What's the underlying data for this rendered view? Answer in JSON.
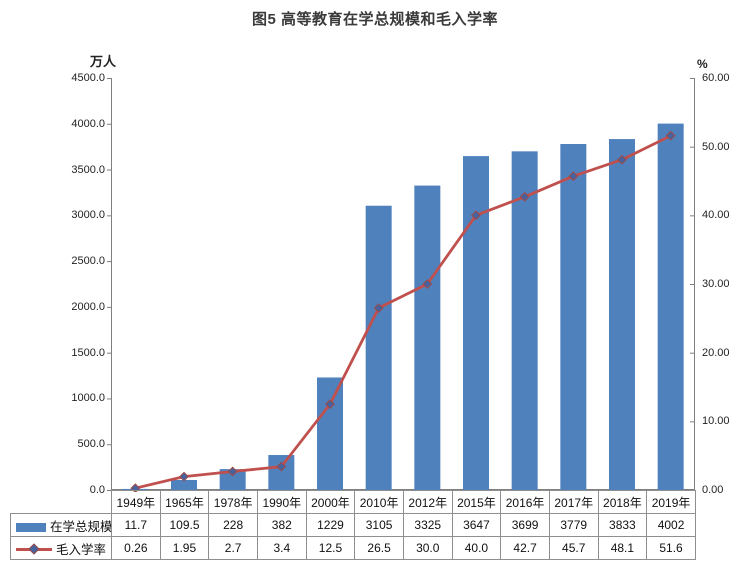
{
  "title": "图5 高等教育在学总规模和毛入学率",
  "chart_data": {
    "type": "bar+line",
    "categories": [
      "1949年",
      "1965年",
      "1978年",
      "1990年",
      "2000年",
      "2010年",
      "2012年",
      "2015年",
      "2016年",
      "2017年",
      "2018年",
      "2019年"
    ],
    "series": [
      {
        "name": "在学总规模",
        "type": "bar",
        "axis": "left",
        "color": "#4f81bd",
        "values": [
          11.7,
          109.5,
          228,
          382,
          1229,
          3105,
          3325,
          3647,
          3699,
          3779,
          3833,
          4002
        ],
        "display_values": [
          "11.7",
          "109.5",
          "228",
          "382",
          "1229",
          "3105",
          "3325",
          "3647",
          "3699",
          "3779",
          "3833",
          "4002"
        ]
      },
      {
        "name": "毛入学率",
        "type": "line",
        "axis": "right",
        "color": "#c0504d",
        "marker": "diamond",
        "marker_fill": "#46639f",
        "marker_border": "#9e4a47",
        "values": [
          0.26,
          1.95,
          2.7,
          3.4,
          12.5,
          26.5,
          30.0,
          40.0,
          42.7,
          45.7,
          48.1,
          51.6
        ],
        "display_values": [
          "0.26",
          "1.95",
          "2.7",
          "3.4",
          "12.5",
          "26.5",
          "30.0",
          "40.0",
          "42.7",
          "45.7",
          "48.1",
          "51.6"
        ]
      }
    ],
    "left_axis": {
      "title": "万人",
      "min": 0,
      "max": 4500,
      "step": 500,
      "tick_labels": [
        "4500.0",
        "4000.0",
        "3500.0",
        "3000.0",
        "2500.0",
        "2000.0",
        "1500.0",
        "1000.0",
        "500.0",
        "0.0"
      ]
    },
    "right_axis": {
      "title": "%",
      "min": 0,
      "max": 60,
      "step": 10,
      "tick_labels": [
        "60.00",
        "50.00",
        "40.00",
        "30.00",
        "20.00",
        "10.00",
        "0.00"
      ]
    },
    "grid": false,
    "legend_position": "data-table-left",
    "colors": {
      "bar": "#4f81bd",
      "line": "#c0504d",
      "axis_line": "#7f7f7f",
      "table_border": "#8e8e8e",
      "title_text": "#3a3a3a"
    }
  }
}
